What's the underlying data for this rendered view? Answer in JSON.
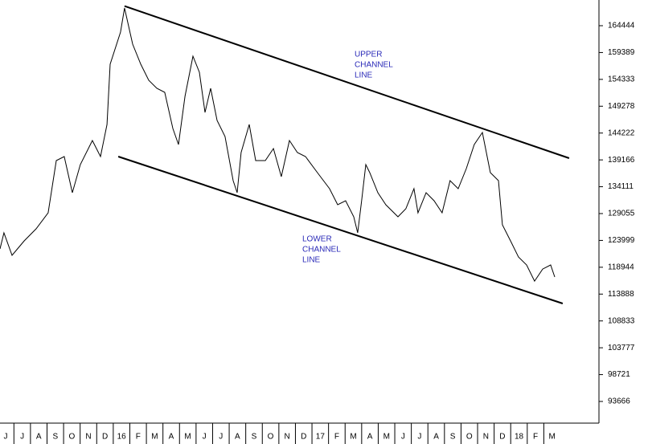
{
  "chart_data": {
    "type": "line",
    "xlim": [
      -0.34,
      35.83
    ],
    "ylim": [
      89885,
      169284
    ],
    "yticks": [
      93666,
      98721,
      103777,
      108833,
      113888,
      118944,
      123999,
      129055,
      134111,
      139166,
      144222,
      149278,
      154333,
      159389,
      164444
    ],
    "xticks": [
      {
        "value": 0,
        "label": "J"
      },
      {
        "value": 1,
        "label": "J"
      },
      {
        "value": 2,
        "label": "A"
      },
      {
        "value": 3,
        "label": "S"
      },
      {
        "value": 4,
        "label": "O"
      },
      {
        "value": 5,
        "label": "N"
      },
      {
        "value": 6,
        "label": "D"
      },
      {
        "value": 7,
        "label": "16"
      },
      {
        "value": 8,
        "label": "F"
      },
      {
        "value": 9,
        "label": "M"
      },
      {
        "value": 10,
        "label": "A"
      },
      {
        "value": 11,
        "label": "M"
      },
      {
        "value": 12,
        "label": "J"
      },
      {
        "value": 13,
        "label": "J"
      },
      {
        "value": 14,
        "label": "A"
      },
      {
        "value": 15,
        "label": "S"
      },
      {
        "value": 16,
        "label": "O"
      },
      {
        "value": 17,
        "label": "N"
      },
      {
        "value": 18,
        "label": "D"
      },
      {
        "value": 19,
        "label": "17"
      },
      {
        "value": 20,
        "label": "F"
      },
      {
        "value": 21,
        "label": "M"
      },
      {
        "value": 22,
        "label": "A"
      },
      {
        "value": 23,
        "label": "M"
      },
      {
        "value": 24,
        "label": "J"
      },
      {
        "value": 25,
        "label": "J"
      },
      {
        "value": 26,
        "label": "A"
      },
      {
        "value": 27,
        "label": "S"
      },
      {
        "value": 28,
        "label": "O"
      },
      {
        "value": 29,
        "label": "N"
      },
      {
        "value": 30,
        "label": "D"
      },
      {
        "value": 31,
        "label": "18"
      },
      {
        "value": 32,
        "label": "F"
      },
      {
        "value": 33,
        "label": "M"
      }
    ],
    "grid": false,
    "series": [
      {
        "color": "#000000",
        "x": [
          -0.34,
          -0.1,
          0.39,
          1.12,
          1.84,
          2.57,
          3.06,
          3.54,
          4.03,
          4.51,
          5.24,
          5.73,
          6.12,
          6.31,
          6.94,
          7.18,
          7.67,
          8.16,
          8.64,
          9.13,
          9.61,
          10.1,
          10.44,
          10.83,
          11.31,
          11.7,
          12.04,
          12.38,
          12.77,
          13.25,
          13.74,
          13.98,
          14.22,
          14.71,
          15.1,
          15.68,
          16.17,
          16.65,
          17.14,
          17.62,
          18.11,
          18.83,
          19.56,
          20.05,
          20.53,
          21.02,
          21.26,
          21.5,
          21.75,
          21.99,
          22.48,
          22.96,
          23.69,
          24.17,
          24.66,
          24.9,
          25.39,
          25.87,
          26.36,
          26.84,
          27.33,
          27.82,
          28.3,
          28.79,
          29.27,
          29.76,
          30,
          30.49,
          30.97,
          31.46,
          31.94,
          32.43,
          32.91,
          33.16
        ],
        "values": [
          122400,
          125420,
          121190,
          123910,
          126180,
          129200,
          139040,
          139790,
          132990,
          138280,
          142820,
          139790,
          145840,
          157180,
          163230,
          167770,
          160960,
          157180,
          154160,
          152650,
          151890,
          145080,
          142060,
          151130,
          158700,
          155670,
          148110,
          152650,
          146600,
          143570,
          135260,
          132990,
          140550,
          145840,
          139040,
          139040,
          141300,
          136010,
          142820,
          140550,
          139790,
          136770,
          133740,
          130720,
          131470,
          128450,
          125420,
          131470,
          138280,
          136770,
          132990,
          130720,
          128450,
          129960,
          133740,
          129200,
          132990,
          131470,
          129200,
          135260,
          133740,
          137520,
          142060,
          144330,
          136770,
          135260,
          126940,
          123910,
          120880,
          119370,
          116340,
          118610,
          119370,
          117110
        ]
      },
      {
        "color": "#000000",
        "x": [
          7.18,
          34.03
        ],
        "values": [
          168130,
          139490
        ]
      },
      {
        "color": "#000000",
        "x": [
          6.8,
          33.64
        ],
        "values": [
          139790,
          112120
        ]
      }
    ],
    "annotations": [
      [
        "UPPER",
        "CHANNEL",
        "LINE"
      ],
      [
        "LOWER",
        "CHANNEL",
        "LINE"
      ]
    ]
  }
}
